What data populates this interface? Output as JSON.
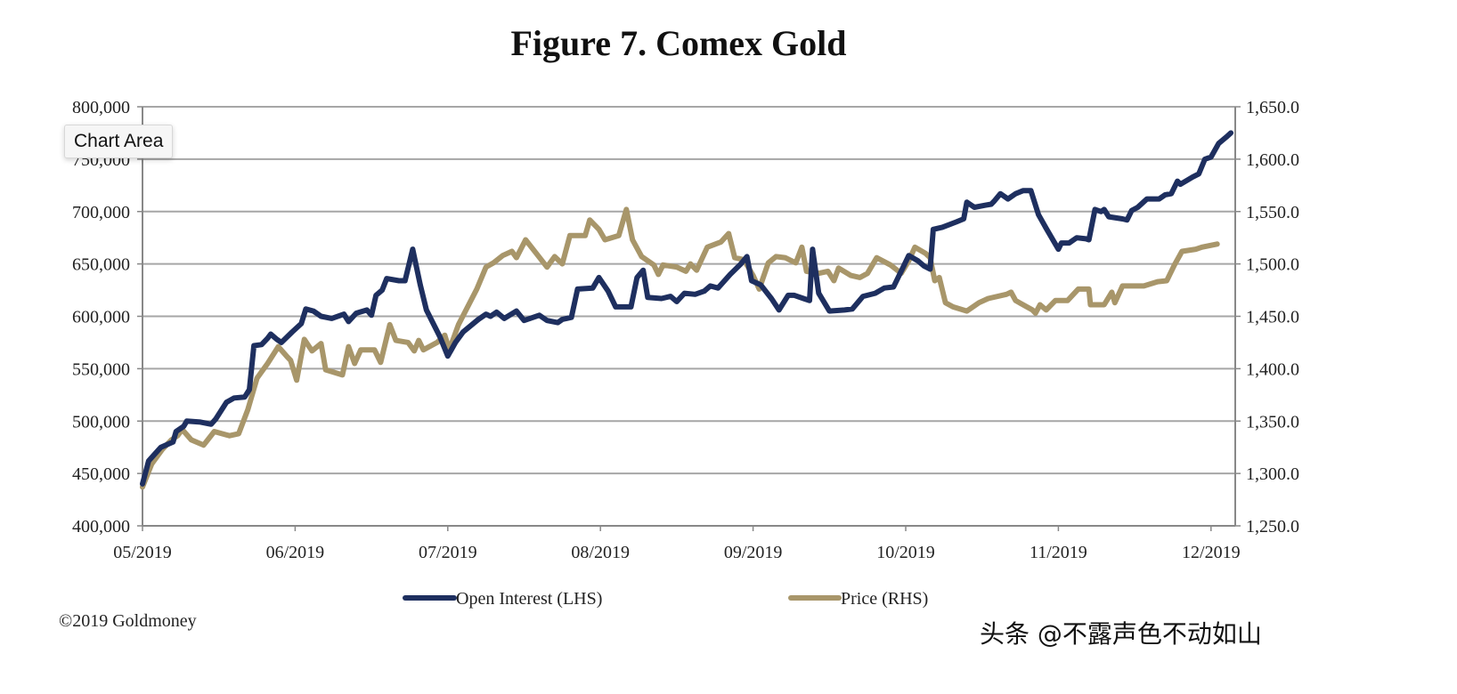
{
  "tooltip": "Chart Area",
  "copyright": "©2019 Goldmoney",
  "watermark": "头条 @不露声色不动如山",
  "colors": {
    "open_interest": "#1e2f5f",
    "price": "#a8966a",
    "grid": "#a6a6a6"
  },
  "chart_data": {
    "type": "line",
    "title": "Figure 7. Comex Gold",
    "x_tick_labels": [
      "05/2019",
      "06/2019",
      "07/2019",
      "08/2019",
      "09/2019",
      "10/2019",
      "11/2019",
      "12/2019"
    ],
    "x_unit": "months since 05/2019",
    "xlim": [
      0,
      7.16
    ],
    "y_left": {
      "label": "Open Interest (LHS)",
      "ylim": [
        400000,
        800000
      ],
      "tick_labels": [
        "400,000",
        "450,000",
        "500,000",
        "550,000",
        "600,000",
        "650,000",
        "700,000",
        "750,000",
        "800,000"
      ]
    },
    "y_right": {
      "label": "Price (RHS)",
      "ylim": [
        1250,
        1650
      ],
      "tick_labels": [
        "1,250.0",
        "1,300.0",
        "1,350.0",
        "1,400.0",
        "1,450.0",
        "1,500.0",
        "1,550.0",
        "1,600.0",
        "1,650.0"
      ]
    },
    "grid": true,
    "legend_position": "bottom",
    "series": [
      {
        "name": "Open Interest (LHS)",
        "axis": "left",
        "x": [
          0,
          0.04,
          0.12,
          0.2,
          0.22,
          0.27,
          0.29,
          0.38,
          0.45,
          0.48,
          0.55,
          0.6,
          0.67,
          0.7,
          0.73,
          0.78,
          0.82,
          0.84,
          0.88,
          0.91,
          0.98,
          1.04,
          1.07,
          1.12,
          1.17,
          1.24,
          1.32,
          1.35,
          1.4,
          1.47,
          1.5,
          1.53,
          1.57,
          1.6,
          1.68,
          1.72,
          1.77,
          1.82,
          1.86,
          1.95,
          2.0,
          2.05,
          2.1,
          2.2,
          2.25,
          2.28,
          2.32,
          2.37,
          2.45,
          2.5,
          2.6,
          2.65,
          2.72,
          2.75,
          2.81,
          2.85,
          2.95,
          2.99,
          3.05,
          3.1,
          3.2,
          3.24,
          3.28,
          3.31,
          3.4,
          3.46,
          3.5,
          3.55,
          3.62,
          3.68,
          3.72,
          3.77,
          3.85,
          3.92,
          3.96,
          3.99,
          4.05,
          4.12,
          4.17,
          4.23,
          4.27,
          4.33,
          4.37,
          4.39,
          4.43,
          4.5,
          4.6,
          4.65,
          4.72,
          4.8,
          4.86,
          4.92,
          4.98,
          5.02,
          5.08,
          5.12,
          5.16,
          5.18,
          5.24,
          5.33,
          5.38,
          5.4,
          5.45,
          5.52,
          5.56,
          5.58,
          5.62,
          5.67,
          5.72,
          5.77,
          5.82,
          5.87,
          5.92,
          6.0,
          6.02,
          6.07,
          6.12,
          6.18,
          6.2,
          6.24,
          6.28,
          6.3,
          6.33,
          6.42,
          6.45,
          6.48,
          6.52,
          6.58,
          6.66,
          6.7,
          6.74,
          6.78,
          6.8,
          6.88,
          6.92,
          6.96,
          7.0,
          7.05,
          7.1,
          7.13
        ],
        "values": [
          440000,
          462000,
          475000,
          480000,
          490000,
          495000,
          500000,
          499000,
          497000,
          502000,
          518000,
          522000,
          523000,
          530000,
          572000,
          573000,
          579000,
          583000,
          578000,
          575000,
          585000,
          593000,
          607000,
          605000,
          600000,
          598000,
          602000,
          595000,
          603000,
          606000,
          601000,
          620000,
          625000,
          636000,
          634000,
          634000,
          664000,
          630000,
          606000,
          580000,
          562000,
          575000,
          585000,
          597000,
          602000,
          600000,
          604000,
          598000,
          605000,
          596000,
          601000,
          596000,
          594000,
          597000,
          599000,
          626000,
          627000,
          637000,
          624000,
          609000,
          609000,
          637000,
          644000,
          618000,
          617000,
          619000,
          614000,
          622000,
          621000,
          624000,
          629000,
          627000,
          640000,
          650000,
          657000,
          634000,
          630000,
          617000,
          606000,
          620000,
          620000,
          617000,
          615000,
          664000,
          622000,
          605000,
          606000,
          607000,
          619000,
          622000,
          627000,
          628000,
          646000,
          658000,
          653000,
          648000,
          645000,
          683000,
          685000,
          690000,
          693000,
          709000,
          704000,
          706000,
          707000,
          710000,
          717000,
          712000,
          717000,
          720000,
          720000,
          697000,
          684000,
          664000,
          670000,
          670000,
          675000,
          674000,
          673000,
          702000,
          700000,
          702000,
          695000,
          693000,
          692000,
          701000,
          704000,
          712000,
          712000,
          716000,
          717000,
          729000,
          726000,
          733000,
          736000,
          750000,
          752000,
          765000,
          771000,
          775000
        ]
      },
      {
        "name": "Price (RHS)",
        "axis": "right",
        "x": [
          0,
          0.06,
          0.13,
          0.19,
          0.23,
          0.26,
          0.32,
          0.4,
          0.47,
          0.57,
          0.63,
          0.69,
          0.75,
          0.82,
          0.89,
          0.95,
          0.97,
          1.01,
          1.06,
          1.11,
          1.17,
          1.2,
          1.31,
          1.35,
          1.39,
          1.43,
          1.52,
          1.56,
          1.62,
          1.66,
          1.74,
          1.78,
          1.81,
          1.84,
          1.93,
          1.98,
          2.01,
          2.07,
          2.13,
          2.19,
          2.25,
          2.3,
          2.36,
          2.42,
          2.45,
          2.51,
          2.58,
          2.65,
          2.7,
          2.75,
          2.8,
          2.9,
          2.93,
          2.99,
          3.03,
          3.12,
          3.17,
          3.21,
          3.27,
          3.35,
          3.38,
          3.41,
          3.5,
          3.56,
          3.59,
          3.63,
          3.7,
          3.79,
          3.84,
          3.88,
          3.94,
          4.0,
          4.04,
          4.1,
          4.15,
          4.21,
          4.28,
          4.32,
          4.35,
          4.43,
          4.49,
          4.53,
          4.56,
          4.64,
          4.7,
          4.75,
          4.81,
          4.9,
          4.97,
          5.02,
          5.06,
          5.13,
          5.16,
          5.19,
          5.22,
          5.26,
          5.31,
          5.4,
          5.48,
          5.54,
          5.66,
          5.69,
          5.72,
          5.83,
          5.85,
          5.88,
          5.92,
          5.98,
          6.06,
          6.13,
          6.2,
          6.21,
          6.3,
          6.35,
          6.37,
          6.42,
          6.56,
          6.65,
          6.71,
          6.76,
          6.81,
          6.9,
          6.94,
          7.04
        ],
        "values": [
          1287,
          1309,
          1323,
          1332,
          1336,
          1342,
          1332,
          1327,
          1340,
          1336,
          1338,
          1361,
          1391,
          1405,
          1421,
          1411,
          1408,
          1389,
          1428,
          1417,
          1424,
          1399,
          1394,
          1421,
          1405,
          1418,
          1418,
          1406,
          1442,
          1427,
          1425,
          1417,
          1427,
          1418,
          1425,
          1432,
          1418,
          1442,
          1459,
          1476,
          1497,
          1501,
          1508,
          1512,
          1506,
          1523,
          1510,
          1497,
          1507,
          1500,
          1527,
          1527,
          1542,
          1533,
          1523,
          1527,
          1552,
          1523,
          1507,
          1499,
          1490,
          1499,
          1497,
          1493,
          1500,
          1494,
          1516,
          1521,
          1529,
          1506,
          1504,
          1489,
          1476,
          1501,
          1507,
          1506,
          1501,
          1516,
          1493,
          1491,
          1493,
          1484,
          1496,
          1489,
          1487,
          1491,
          1506,
          1499,
          1491,
          1503,
          1516,
          1510,
          1506,
          1484,
          1487,
          1463,
          1459,
          1455,
          1463,
          1467,
          1471,
          1473,
          1465,
          1456,
          1453,
          1461,
          1456,
          1465,
          1465,
          1476,
          1476,
          1461,
          1461,
          1473,
          1463,
          1479,
          1479,
          1483,
          1484,
          1499,
          1512,
          1514,
          1516,
          1519
        ]
      }
    ]
  }
}
